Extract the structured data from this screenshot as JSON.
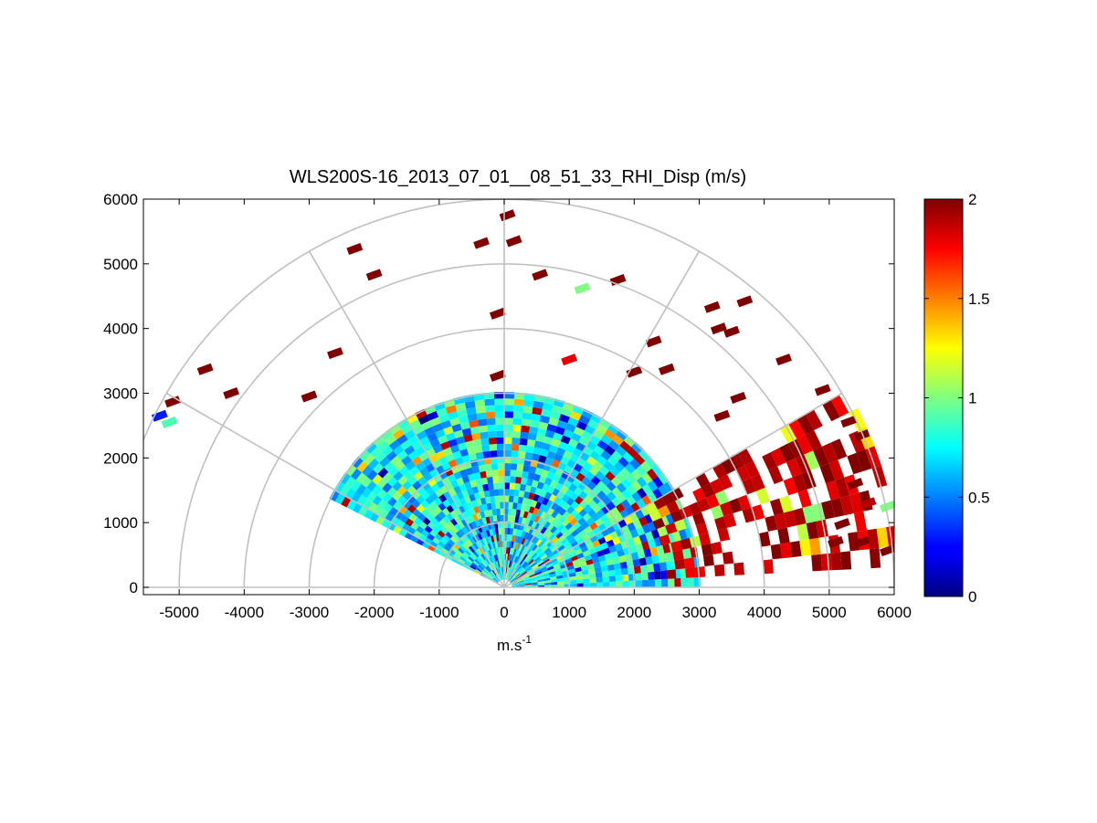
{
  "chart_data": {
    "type": "heatmap",
    "subtype": "polar-rhi-scan",
    "title": "WLS200S-16_2013_07_01__08_51_33_RHI_Disp (m/s)",
    "xlabel": "m.s",
    "xlabel_sup": "-1",
    "ylabel": "",
    "xlim": [
      -5600,
      6000
    ],
    "ylim": [
      -100,
      6000
    ],
    "xticks": [
      -5000,
      -4000,
      -3000,
      -2000,
      -1000,
      0,
      1000,
      2000,
      3000,
      4000,
      5000,
      6000
    ],
    "xtick_labels": [
      "-5000",
      "-4000",
      "-3000",
      "-2000",
      "-1000",
      "0",
      "1000",
      "2000",
      "3000",
      "4000",
      "5000",
      "6000"
    ],
    "yticks": [
      0,
      1000,
      2000,
      3000,
      4000,
      5000,
      6000
    ],
    "ytick_labels": [
      "0",
      "1000",
      "2000",
      "3000",
      "4000",
      "5000",
      "6000"
    ],
    "polar_grid": {
      "range_rings_m": [
        1000,
        2000,
        3000,
        4000,
        5000,
        6000
      ],
      "spokes_deg": [
        0,
        30,
        60,
        90,
        120,
        150,
        180
      ]
    },
    "grid": true,
    "colorbar": {
      "min": 0,
      "max": 2,
      "ticks": [
        0,
        0.5,
        1,
        1.5,
        2
      ],
      "tick_labels": [
        "0",
        "0.5",
        "1",
        "1.5",
        "2"
      ],
      "colormap": "jet"
    },
    "data_extent": {
      "min_elevation_deg": 0,
      "max_elevation_deg": 152,
      "max_range_m": 3000,
      "typical_value": 0.75
    },
    "high_value_sector": {
      "elevation_range_deg": [
        3,
        30
      ],
      "range_m": [
        2500,
        6000
      ],
      "typical_value": 1.9
    },
    "isolated_cells": [
      {
        "x": 50,
        "y": 5750,
        "v": 2.0
      },
      {
        "x": 150,
        "y": 5350,
        "v": 2.0
      },
      {
        "x": -350,
        "y": 5320,
        "v": 2.0
      },
      {
        "x": -2300,
        "y": 5230,
        "v": 2.0
      },
      {
        "x": -2000,
        "y": 4830,
        "v": 2.0
      },
      {
        "x": 550,
        "y": 4830,
        "v": 2.0
      },
      {
        "x": 1750,
        "y": 4750,
        "v": 2.0
      },
      {
        "x": 1200,
        "y": 4620,
        "v": 1.0
      },
      {
        "x": -100,
        "y": 4230,
        "v": 2.0
      },
      {
        "x": 3200,
        "y": 4330,
        "v": 2.0
      },
      {
        "x": 3700,
        "y": 4420,
        "v": 2.0
      },
      {
        "x": 3300,
        "y": 4000,
        "v": 2.0
      },
      {
        "x": 3500,
        "y": 3950,
        "v": 2.0
      },
      {
        "x": 2300,
        "y": 3800,
        "v": 2.0
      },
      {
        "x": -2600,
        "y": 3620,
        "v": 2.0
      },
      {
        "x": 1000,
        "y": 3520,
        "v": 1.8
      },
      {
        "x": 2000,
        "y": 3330,
        "v": 2.0
      },
      {
        "x": 2500,
        "y": 3370,
        "v": 2.0
      },
      {
        "x": 4300,
        "y": 3520,
        "v": 2.0
      },
      {
        "x": -100,
        "y": 3270,
        "v": 2.0
      },
      {
        "x": -4600,
        "y": 3370,
        "v": 2.0
      },
      {
        "x": -4200,
        "y": 3000,
        "v": 2.0
      },
      {
        "x": -3000,
        "y": 2950,
        "v": 2.0
      },
      {
        "x": -5100,
        "y": 2870,
        "v": 2.0
      },
      {
        "x": -5300,
        "y": 2650,
        "v": 0.3
      },
      {
        "x": -5150,
        "y": 2550,
        "v": 0.9
      },
      {
        "x": 3600,
        "y": 2930,
        "v": 2.0
      },
      {
        "x": 3350,
        "y": 2650,
        "v": 2.0
      },
      {
        "x": 4900,
        "y": 3050,
        "v": 2.0
      },
      {
        "x": 5300,
        "y": 2560,
        "v": 2.0
      },
      {
        "x": 5500,
        "y": 2350,
        "v": 2.0
      },
      {
        "x": 5400,
        "y": 1600,
        "v": 2.0
      },
      {
        "x": 5600,
        "y": 1300,
        "v": 1.9
      },
      {
        "x": 5900,
        "y": 1250,
        "v": 1.0
      },
      {
        "x": 5200,
        "y": 980,
        "v": 2.0
      },
      {
        "x": 5100,
        "y": 700,
        "v": 2.0
      },
      {
        "x": 5500,
        "y": 700,
        "v": 2.0
      },
      {
        "x": 5900,
        "y": 570,
        "v": 2.0
      }
    ]
  }
}
